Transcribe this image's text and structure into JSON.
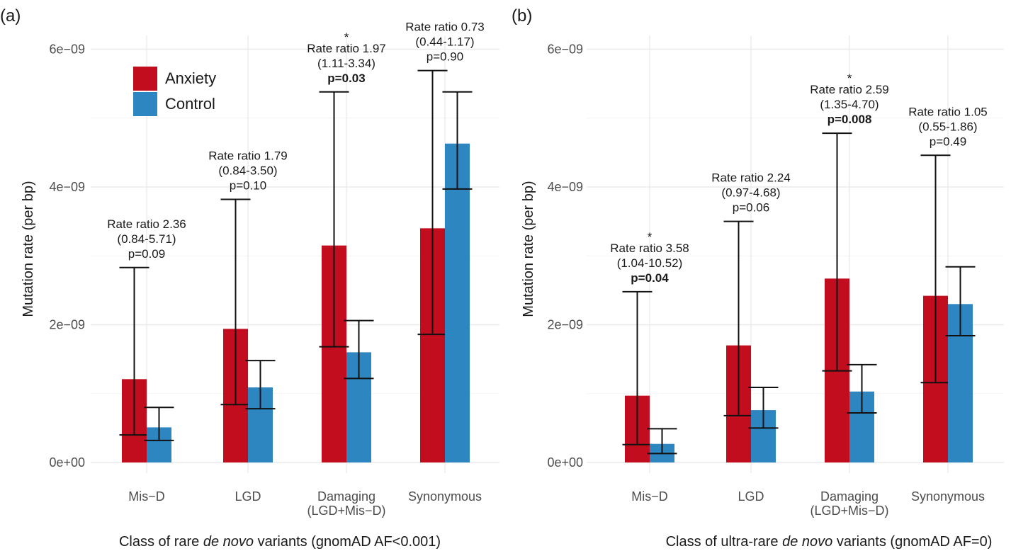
{
  "chart_data": [
    {
      "type": "bar",
      "panel_label": "(a)",
      "ylabel": "Mutation rate (per bp)",
      "xlabel_parts": [
        "Class of rare ",
        "de novo",
        " variants (gnomAD AF<0.001)"
      ],
      "ylim": [
        0,
        6.2e-09
      ],
      "yticks": [
        0,
        2e-09,
        4e-09,
        6e-09
      ],
      "ytick_labels": [
        "0e+00",
        "2e−09",
        "4e−09",
        "6e−09"
      ],
      "grid": true,
      "legend": {
        "position": "top-left",
        "entries": [
          "Anxiety",
          "Control"
        ]
      },
      "categories": [
        {
          "lines": [
            "Mis−D"
          ]
        },
        {
          "lines": [
            "LGD"
          ]
        },
        {
          "lines": [
            "Damaging",
            "(LGD+Mis−D)"
          ]
        },
        {
          "lines": [
            "Synonymous"
          ]
        }
      ],
      "series": [
        {
          "name": "Anxiety",
          "color": "#c20d1f",
          "values": [
            1.21e-09,
            1.94e-09,
            3.15e-09,
            3.4e-09
          ],
          "lower": [
            4e-10,
            8.4e-10,
            1.68e-09,
            1.86e-09
          ],
          "upper": [
            2.83e-09,
            3.82e-09,
            5.38e-09,
            5.69e-09
          ]
        },
        {
          "name": "Control",
          "color": "#2e86c1",
          "values": [
            5.1e-10,
            1.09e-09,
            1.6e-09,
            4.63e-09
          ],
          "lower": [
            3.2e-10,
            7.8e-10,
            1.22e-09,
            3.97e-09
          ],
          "upper": [
            8e-10,
            1.48e-09,
            2.06e-09,
            5.38e-09
          ]
        }
      ],
      "annotations": [
        {
          "category": 0,
          "star": false,
          "lines": [
            "Rate ratio 2.36",
            "(0.84-5.71)",
            "p=0.09"
          ],
          "bold_last": false
        },
        {
          "category": 1,
          "star": false,
          "lines": [
            "Rate ratio 1.79",
            "(0.84-3.50)",
            "p=0.10"
          ],
          "bold_last": false
        },
        {
          "category": 2,
          "star": true,
          "lines": [
            "Rate ratio 1.97",
            "(1.11-3.34)",
            "p=0.03"
          ],
          "bold_last": true
        },
        {
          "category": 3,
          "star": false,
          "lines": [
            "Rate ratio 0.73",
            "(0.44-1.17)",
            "p=0.90"
          ],
          "bold_last": false
        }
      ]
    },
    {
      "type": "bar",
      "panel_label": "(b)",
      "ylabel": "Mutation rate (per bp)",
      "xlabel_parts": [
        "Class of ultra-rare ",
        "de novo",
        " variants (gnomAD AF=0)"
      ],
      "ylim": [
        0,
        6.2e-09
      ],
      "yticks": [
        0,
        2e-09,
        4e-09,
        6e-09
      ],
      "ytick_labels": [
        "0e+00",
        "2e−09",
        "4e−09",
        "6e−09"
      ],
      "grid": true,
      "categories": [
        {
          "lines": [
            "Mis−D"
          ]
        },
        {
          "lines": [
            "LGD"
          ]
        },
        {
          "lines": [
            "Damaging",
            "(LGD+Mis−D)"
          ]
        },
        {
          "lines": [
            "Synonymous"
          ]
        }
      ],
      "series": [
        {
          "name": "Anxiety",
          "color": "#c20d1f",
          "values": [
            9.7e-10,
            1.7e-09,
            2.67e-09,
            2.42e-09
          ],
          "lower": [
            2.6e-10,
            6.8e-10,
            1.33e-09,
            1.16e-09
          ],
          "upper": [
            2.48e-09,
            3.5e-09,
            4.78e-09,
            4.46e-09
          ]
        },
        {
          "name": "Control",
          "color": "#2e86c1",
          "values": [
            2.7e-10,
            7.6e-10,
            1.03e-09,
            2.3e-09
          ],
          "lower": [
            1.3e-10,
            5e-10,
            7.2e-10,
            1.84e-09
          ],
          "upper": [
            4.9e-10,
            1.09e-09,
            1.42e-09,
            2.84e-09
          ]
        }
      ],
      "annotations": [
        {
          "category": 0,
          "star": true,
          "lines": [
            "Rate ratio 3.58",
            "(1.04-10.52)",
            "p=0.04"
          ],
          "bold_last": true
        },
        {
          "category": 1,
          "star": false,
          "lines": [
            "Rate ratio 2.24",
            "(0.97-4.68)",
            "p=0.06"
          ],
          "bold_last": false
        },
        {
          "category": 2,
          "star": true,
          "lines": [
            "Rate ratio 2.59",
            "(1.35-4.70)",
            "p=0.008"
          ],
          "bold_last": true
        },
        {
          "category": 3,
          "star": false,
          "lines": [
            "Rate ratio 1.05",
            "(0.55-1.86)",
            "p=0.49"
          ],
          "bold_last": false
        }
      ]
    }
  ],
  "star_symbol": "*"
}
